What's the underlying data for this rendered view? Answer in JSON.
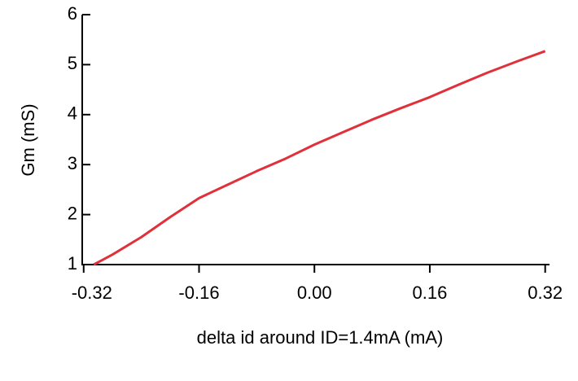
{
  "chart_data": {
    "type": "line",
    "x_label": "delta id around ID=1.4mA (mA)",
    "y_label": "Gm (mS)",
    "x": [
      -0.306,
      -0.28,
      -0.24,
      -0.2,
      -0.16,
      -0.12,
      -0.08,
      -0.04,
      0,
      0.04,
      0.08,
      0.12,
      0.16,
      0.2,
      0.24,
      0.28,
      0.32
    ],
    "series": [
      {
        "color": "#e0303a",
        "values": [
          1.0,
          1.2,
          1.55,
          1.95,
          2.33,
          2.6,
          2.87,
          3.12,
          3.4,
          3.65,
          3.9,
          4.13,
          4.35,
          4.6,
          4.84,
          5.06,
          5.27
        ]
      }
    ],
    "xlim": [
      -0.322,
      0.326
    ],
    "xticks": [
      -0.32,
      -0.16,
      {
        "value": 0,
        "label": "0.00"
      },
      0.16,
      0.32
    ],
    "ylim": [
      1,
      6
    ],
    "yticks": [
      1,
      2,
      3,
      4,
      5,
      6
    ],
    "grid": false
  }
}
